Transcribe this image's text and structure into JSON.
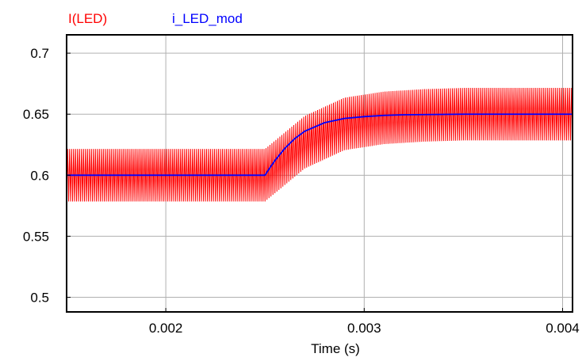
{
  "chart_data": {
    "type": "line",
    "title": "",
    "xlabel": "Time (s)",
    "ylabel": "",
    "xlim": [
      0.0015,
      0.00405
    ],
    "ylim": [
      0.488,
      0.715
    ],
    "xticks": [
      0.002,
      0.003,
      0.004
    ],
    "xtick_labels": [
      "0.002",
      "0.003",
      "0.004"
    ],
    "yticks": [
      0.5,
      0.55,
      0.6,
      0.65,
      0.7
    ],
    "ytick_labels": [
      "0.5",
      "0.55",
      "0.6",
      "0.65",
      "0.7"
    ],
    "grid": true,
    "legend_position": "top-left",
    "series": [
      {
        "name": "I(LED)",
        "color": "#ff0000",
        "kind": "ripple",
        "x_start": 0.0015,
        "x_step": 0.0002,
        "x_end": 0.00405,
        "center": [
          0.6,
          0.6,
          0.6,
          0.6,
          0.6,
          0.6,
          0.627,
          0.642,
          0.647,
          0.649,
          0.65,
          0.65,
          0.65,
          0.65
        ],
        "ripple_amplitude": 0.0215,
        "ripple_period": 1e-05
      },
      {
        "name": "i_LED_mod",
        "color": "#0000ff",
        "x": [
          0.0015,
          0.0025,
          0.00252,
          0.00255,
          0.0026,
          0.00265,
          0.0027,
          0.0028,
          0.0029,
          0.003,
          0.0031,
          0.0032,
          0.0035,
          0.00405
        ],
        "y": [
          0.6,
          0.6,
          0.605,
          0.612,
          0.622,
          0.63,
          0.636,
          0.643,
          0.6465,
          0.648,
          0.649,
          0.6495,
          0.65,
          0.65
        ]
      }
    ]
  }
}
